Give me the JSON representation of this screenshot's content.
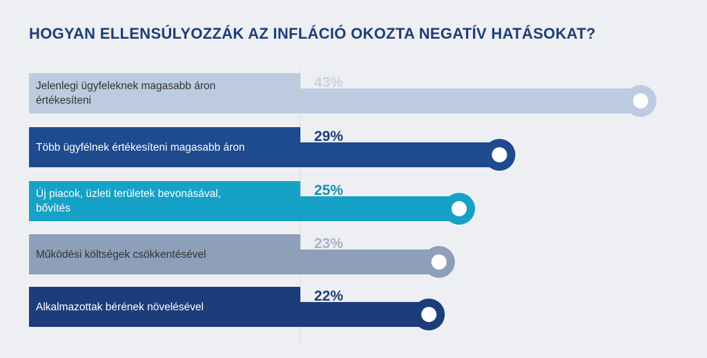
{
  "chart_data": {
    "type": "bar",
    "title": "HOGYAN ELLENSÚLYOZZÁK AZ INFLÁCIÓ OKOZTA NEGATÍV HATÁSOKAT?",
    "categories": [
      "Jelenlegi ügyfeleknek magasabb áron\nértékesíteni",
      "Több ügyfélnek értékesíteni magasabb áron",
      "Új piacok, üzleti területek bevonásával,\nbővítés",
      "Működési költségek csökkentésével",
      "Alkalmazottak bérének növelésével"
    ],
    "values": [
      43,
      29,
      25,
      23,
      22
    ],
    "value_labels": [
      "43%",
      "29%",
      "25%",
      "23%",
      "22%"
    ],
    "colors": [
      "#bccbe0",
      "#1e4a8e",
      "#16a2c6",
      "#8d9fb9",
      "#1c3d7a"
    ],
    "value_label_colors": [
      "#c6d3e5",
      "#1c3d7a",
      "#1590b3",
      "#a5b4c9",
      "#1c3d7a"
    ],
    "label_text_colors": [
      "#333333",
      "#ffffff",
      "#ffffff",
      "#333333",
      "#ffffff"
    ]
  }
}
